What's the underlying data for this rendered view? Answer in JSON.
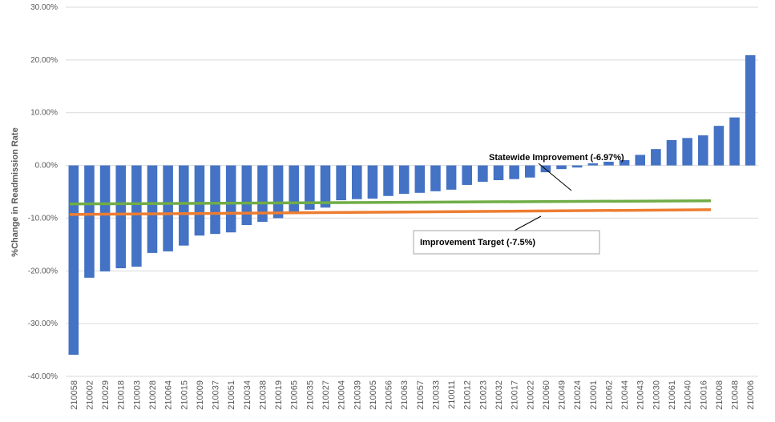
{
  "chart_data": {
    "type": "bar",
    "y_label": "%Change in Readmission Rate",
    "categories": [
      "210058",
      "210002",
      "210029",
      "210018",
      "210003",
      "210028",
      "210064",
      "210015",
      "210009",
      "210037",
      "210051",
      "210034",
      "210038",
      "210019",
      "210065",
      "210035",
      "210027",
      "210004",
      "210039",
      "210005",
      "210056",
      "210063",
      "210057",
      "210033",
      "210011",
      "210012",
      "210023",
      "210032",
      "210017",
      "210022",
      "210060",
      "210049",
      "210024",
      "210001",
      "210062",
      "210044",
      "210043",
      "210030",
      "210061",
      "210040",
      "210016",
      "210008",
      "210048",
      "210006"
    ],
    "values": [
      -35.9,
      -21.3,
      -20.1,
      -19.5,
      -19.2,
      -16.6,
      -16.3,
      -15.2,
      -13.3,
      -13.0,
      -12.7,
      -11.3,
      -10.7,
      -10.0,
      -8.8,
      -8.4,
      -8.0,
      -6.6,
      -6.4,
      -6.3,
      -5.8,
      -5.4,
      -5.2,
      -4.9,
      -4.6,
      -3.7,
      -3.1,
      -2.8,
      -2.6,
      -2.3,
      -1.3,
      -0.7,
      -0.4,
      0.4,
      0.7,
      1.0,
      2.0,
      3.1,
      4.8,
      5.2,
      5.7,
      7.5,
      9.1,
      20.9
    ],
    "color": "#4472c4",
    "ylim": [
      -40,
      30
    ],
    "yticks": [
      {
        "value": -40,
        "label": "-40.00%"
      },
      {
        "value": -30,
        "label": "-30.00%"
      },
      {
        "value": -20,
        "label": "-20.00%"
      },
      {
        "value": -10,
        "label": "-10.00%"
      },
      {
        "value": 0,
        "label": "0.00%"
      },
      {
        "value": 10,
        "label": "10.00%"
      },
      {
        "value": 20,
        "label": "20.00%"
      },
      {
        "value": 30,
        "label": "30.00%"
      }
    ],
    "grid": true,
    "lines": [
      {
        "color": "#70ad47",
        "values": [
          -7.3,
          -6.7
        ]
      },
      {
        "color": "#ed7d31",
        "values": [
          -9.3,
          -8.4
        ]
      }
    ],
    "annotations": [
      "Statewide Improvement (-6.97%)",
      "Improvement Target (-7.5%)"
    ]
  }
}
